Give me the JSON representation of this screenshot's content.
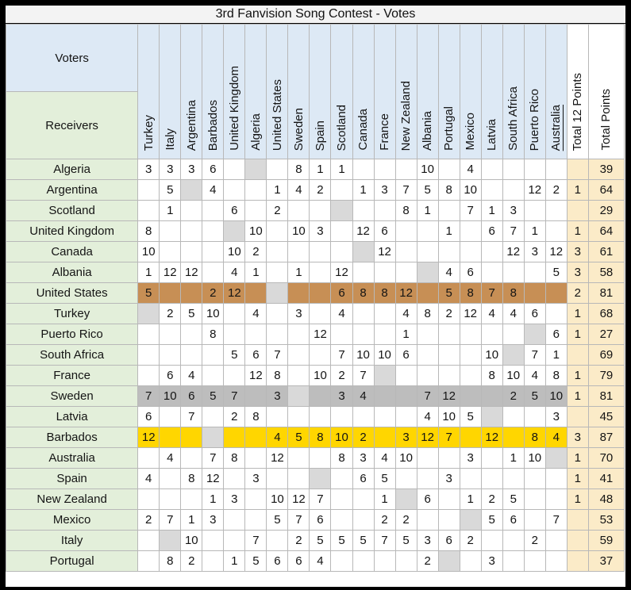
{
  "title": "3rd Fanvision Song Contest - Votes",
  "corner": {
    "top_label": "Voters",
    "bottom_label": "Receivers"
  },
  "total_column_labels": {
    "total_12": "Total 12 Points",
    "total_points": "Total Points"
  },
  "underlined_voter": "Australia",
  "colors": {
    "header_blue": "#DDE9F5",
    "label_green": "#E3EFDA",
    "self_gray": "#D9D9D9",
    "row_gray": "#BDBDBD",
    "row_orange": "#C78F55",
    "row_yellow": "#FFD600",
    "totals_cream": "#FBEBC8",
    "grid_line": "#B8B8B8",
    "title_bg": "#F3F3F3"
  },
  "chart_data": {
    "type": "table",
    "voters": [
      "Turkey",
      "Italy",
      "Argentina",
      "Barbados",
      "United Kingdom",
      "Algeria",
      "United States",
      "Sweden",
      "Spain",
      "Scotland",
      "Canada",
      "France",
      "New Zealand",
      "Albania",
      "Portugal",
      "Mexico",
      "Latvia",
      "South Africa",
      "Puerto Rico",
      "Australia"
    ],
    "rows": [
      {
        "receiver": "Algeria",
        "votes": [
          "3",
          "3",
          "3",
          "6",
          "",
          "",
          "",
          "8",
          "1",
          "1",
          "",
          "",
          "",
          "10",
          "",
          "4",
          "",
          "",
          "",
          ""
        ],
        "total_12_points": "",
        "total_points": "39",
        "highlight": "none"
      },
      {
        "receiver": "Argentina",
        "votes": [
          "",
          "5",
          "",
          "4",
          "",
          "",
          "1",
          "4",
          "2",
          "",
          "1",
          "3",
          "7",
          "5",
          "8",
          "10",
          "",
          "",
          "12",
          "2"
        ],
        "total_12_points": "1",
        "total_points": "64",
        "highlight": "none"
      },
      {
        "receiver": "Scotland",
        "votes": [
          "",
          "1",
          "",
          "",
          "6",
          "",
          "2",
          "",
          "",
          "",
          "",
          "",
          "8",
          "1",
          "",
          "7",
          "1",
          "3",
          "",
          ""
        ],
        "total_12_points": "",
        "total_points": "29",
        "highlight": "none"
      },
      {
        "receiver": "United Kingdom",
        "votes": [
          "8",
          "",
          "",
          "",
          "",
          "10",
          "",
          "10",
          "3",
          "",
          "12",
          "6",
          "",
          "",
          "1",
          "",
          "6",
          "7",
          "1",
          ""
        ],
        "total_12_points": "1",
        "total_points": "64",
        "highlight": "none"
      },
      {
        "receiver": "Canada",
        "votes": [
          "10",
          "",
          "",
          "",
          "10",
          "2",
          "",
          "",
          "",
          "",
          "",
          "12",
          "",
          "",
          "",
          "",
          "",
          "12",
          "3",
          "12"
        ],
        "total_12_points": "3",
        "total_points": "61",
        "highlight": "none"
      },
      {
        "receiver": "Albania",
        "votes": [
          "1",
          "12",
          "12",
          "",
          "4",
          "1",
          "",
          "1",
          "",
          "12",
          "",
          "",
          "",
          "",
          "4",
          "6",
          "",
          "",
          "",
          "5"
        ],
        "total_12_points": "3",
        "total_points": "58",
        "highlight": "none"
      },
      {
        "receiver": "United States",
        "votes": [
          "5",
          "",
          "",
          "2",
          "12",
          "",
          "",
          "",
          "",
          "6",
          "8",
          "8",
          "12",
          "",
          "5",
          "8",
          "7",
          "8",
          "",
          ""
        ],
        "total_12_points": "2",
        "total_points": "81",
        "highlight": "orange"
      },
      {
        "receiver": "Turkey",
        "votes": [
          "",
          "2",
          "5",
          "10",
          "",
          "4",
          "",
          "3",
          "",
          "4",
          "",
          "",
          "4",
          "8",
          "2",
          "12",
          "4",
          "4",
          "6",
          ""
        ],
        "total_12_points": "1",
        "total_points": "68",
        "highlight": "none"
      },
      {
        "receiver": "Puerto Rico",
        "votes": [
          "",
          "",
          "",
          "8",
          "",
          "",
          "",
          "",
          "12",
          "",
          "",
          "",
          "1",
          "",
          "",
          "",
          "",
          "",
          "",
          "6"
        ],
        "total_12_points": "1",
        "total_points": "27",
        "highlight": "none"
      },
      {
        "receiver": "South Africa",
        "votes": [
          "",
          "",
          "",
          "",
          "5",
          "6",
          "7",
          "",
          "",
          "7",
          "10",
          "10",
          "6",
          "",
          "",
          "",
          "10",
          "",
          "7",
          "1"
        ],
        "total_12_points": "",
        "total_points": "69",
        "highlight": "none"
      },
      {
        "receiver": "France",
        "votes": [
          "",
          "6",
          "4",
          "",
          "",
          "12",
          "8",
          "",
          "10",
          "2",
          "7",
          "",
          "",
          "",
          "",
          "",
          "8",
          "10",
          "4",
          "8"
        ],
        "total_12_points": "1",
        "total_points": "79",
        "highlight": "none"
      },
      {
        "receiver": "Sweden",
        "votes": [
          "7",
          "10",
          "6",
          "5",
          "7",
          "",
          "3",
          "",
          "",
          "3",
          "4",
          "",
          "",
          "7",
          "12",
          "",
          "",
          "2",
          "5",
          "10"
        ],
        "total_12_points": "1",
        "total_points": "81",
        "highlight": "gray"
      },
      {
        "receiver": "Latvia",
        "votes": [
          "6",
          "",
          "7",
          "",
          "2",
          "8",
          "",
          "",
          "",
          "",
          "",
          "",
          "",
          "4",
          "10",
          "5",
          "",
          "",
          "",
          "3"
        ],
        "total_12_points": "",
        "total_points": "45",
        "highlight": "none"
      },
      {
        "receiver": "Barbados",
        "votes": [
          "12",
          "",
          "",
          "",
          "",
          "",
          "4",
          "5",
          "8",
          "10",
          "2",
          "",
          "3",
          "12",
          "7",
          "",
          "12",
          "",
          "8",
          "4"
        ],
        "total_12_points": "3",
        "total_points": "87",
        "highlight": "yellow"
      },
      {
        "receiver": "Australia",
        "votes": [
          "",
          "4",
          "",
          "7",
          "8",
          "",
          "12",
          "",
          "",
          "8",
          "3",
          "4",
          "10",
          "",
          "",
          "3",
          "",
          "1",
          "10",
          ""
        ],
        "total_12_points": "1",
        "total_points": "70",
        "highlight": "none"
      },
      {
        "receiver": "Spain",
        "votes": [
          "4",
          "",
          "8",
          "12",
          "",
          "3",
          "",
          "",
          "",
          "",
          "6",
          "5",
          "",
          "",
          "3",
          "",
          "",
          "",
          "",
          ""
        ],
        "total_12_points": "1",
        "total_points": "41",
        "highlight": "none"
      },
      {
        "receiver": "New Zealand",
        "votes": [
          "",
          "",
          "",
          "1",
          "3",
          "",
          "10",
          "12",
          "7",
          "",
          "",
          "1",
          "",
          "6",
          "",
          "1",
          "2",
          "5",
          "",
          ""
        ],
        "total_12_points": "1",
        "total_points": "48",
        "highlight": "none"
      },
      {
        "receiver": "Mexico",
        "votes": [
          "2",
          "7",
          "1",
          "3",
          "",
          "",
          "5",
          "7",
          "6",
          "",
          "",
          "2",
          "2",
          "",
          "",
          "",
          "5",
          "6",
          "",
          "7"
        ],
        "total_12_points": "",
        "total_points": "53",
        "highlight": "none"
      },
      {
        "receiver": "Italy",
        "votes": [
          "",
          "",
          "10",
          "",
          "",
          "7",
          "",
          "2",
          "5",
          "5",
          "5",
          "7",
          "5",
          "3",
          "6",
          "2",
          "",
          "",
          "2",
          ""
        ],
        "total_12_points": "",
        "total_points": "59",
        "highlight": "none"
      },
      {
        "receiver": "Portugal",
        "votes": [
          "",
          "8",
          "2",
          "",
          "1",
          "5",
          "6",
          "6",
          "4",
          "",
          "",
          "",
          "",
          "2",
          "",
          "",
          "3",
          "",
          "",
          ""
        ],
        "total_12_points": "",
        "total_points": "37",
        "highlight": "none"
      }
    ]
  }
}
